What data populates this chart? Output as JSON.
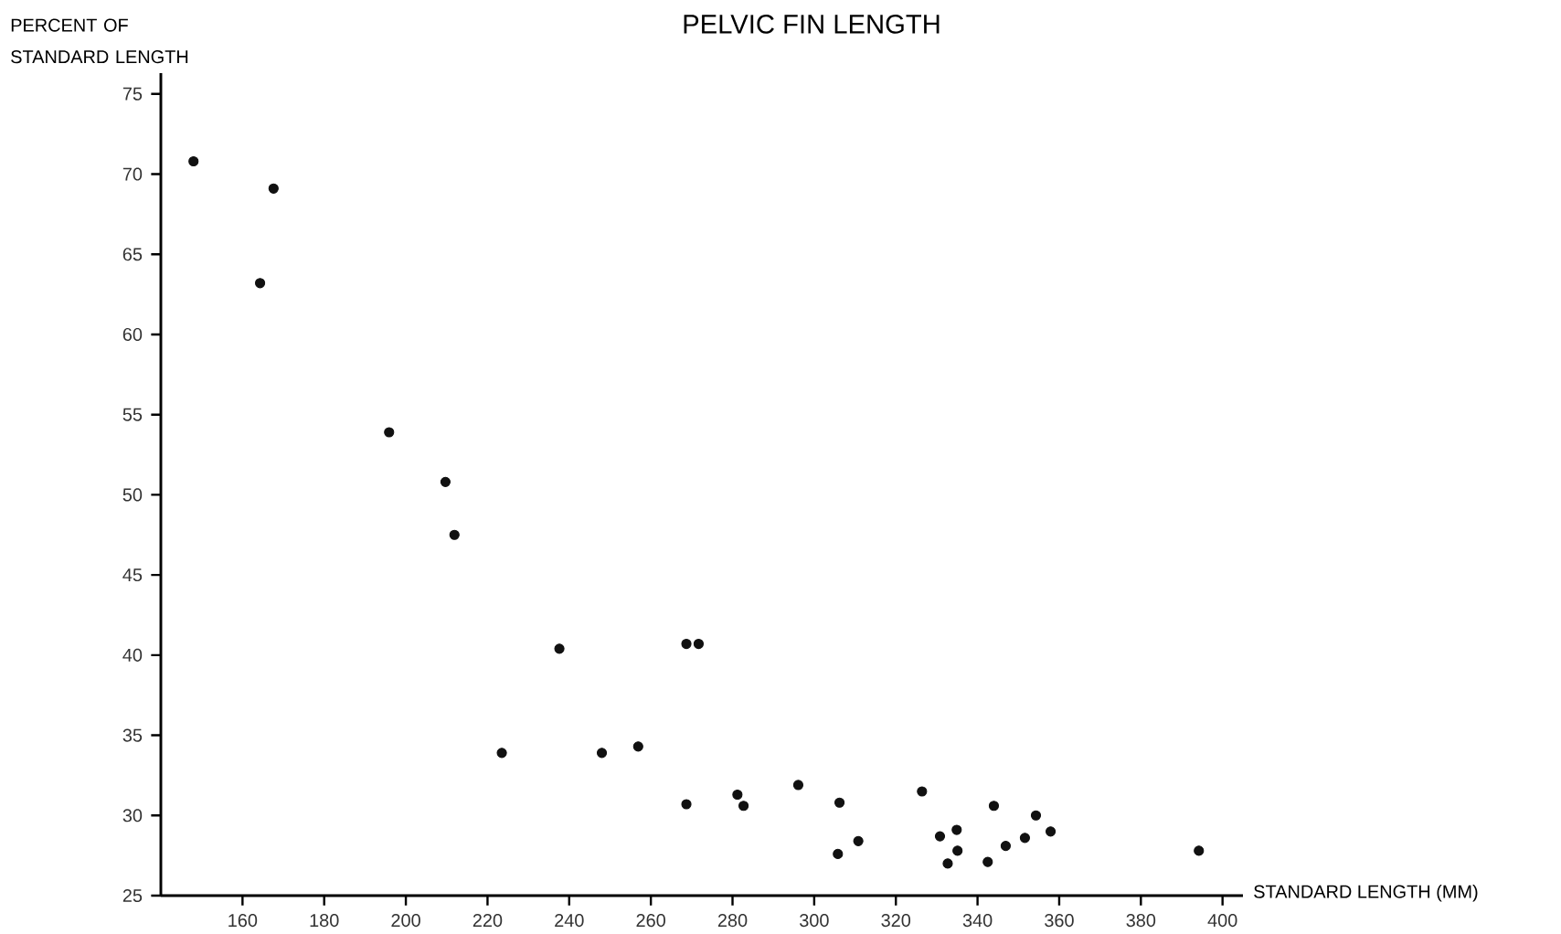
{
  "chart_data": {
    "type": "scatter",
    "title": "PELVIC FIN LENGTH",
    "xlabel": "STANDARD LENGTH (MM)",
    "ylabel": "PERCENT OF STANDARD LENGTH",
    "x": [
      148.0,
      167.6,
      164.3,
      195.9,
      209.7,
      211.9,
      237.6,
      268.7,
      271.7,
      223.5,
      248.0,
      256.9,
      268.7,
      281.2,
      282.7,
      296.1,
      306.2,
      305.8,
      310.8,
      326.4,
      330.8,
      334.9,
      335.1,
      332.7,
      342.5,
      344.0,
      346.9,
      351.6,
      354.3,
      357.9,
      394.2
    ],
    "values": [
      70.8,
      69.1,
      63.2,
      53.9,
      50.8,
      47.5,
      40.4,
      40.7,
      40.7,
      33.9,
      33.9,
      34.3,
      30.7,
      31.3,
      30.6,
      31.9,
      30.8,
      27.6,
      28.4,
      31.5,
      28.7,
      29.1,
      27.8,
      27.0,
      27.1,
      30.6,
      28.1,
      28.6,
      30.0,
      29.0,
      27.8
    ],
    "color": "#111111",
    "grid": false,
    "legend": false,
    "xlim": [
      140,
      405
    ],
    "ylim": [
      25,
      76.3
    ],
    "xticks": [
      160,
      180,
      200,
      220,
      240,
      260,
      280,
      300,
      320,
      340,
      360,
      380,
      400
    ],
    "yticks": [
      25,
      30,
      35,
      40,
      45,
      50,
      55,
      60,
      65,
      70,
      75
    ]
  }
}
